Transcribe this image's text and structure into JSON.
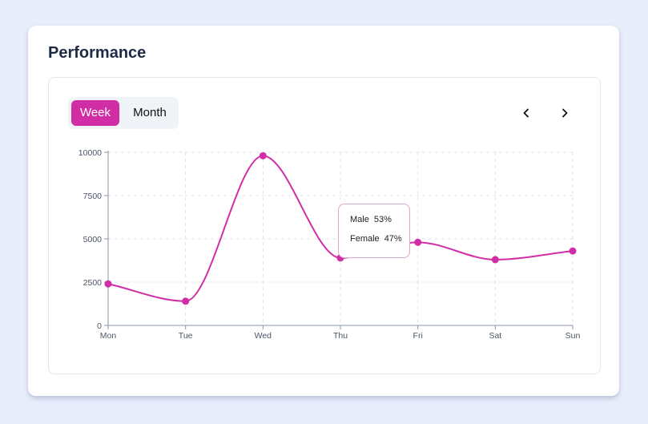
{
  "card": {
    "title": "Performance"
  },
  "toggle": {
    "week_label": "Week",
    "month_label": "Month",
    "active": "Week"
  },
  "nav": {
    "prev_icon": "chevron-left-icon",
    "next_icon": "chevron-right-icon"
  },
  "colors": {
    "accent": "#d12ea6",
    "grid": "#dfe3ea",
    "axis": "#8a96aa"
  },
  "tooltip": {
    "rows": [
      {
        "label": "Male",
        "value": "53%"
      },
      {
        "label": "Female",
        "value": "47%"
      }
    ]
  },
  "chart_data": {
    "type": "line",
    "categories": [
      "Mon",
      "Tue",
      "Wed",
      "Thu",
      "Fri",
      "Sat",
      "Sun"
    ],
    "values": [
      2400,
      1400,
      9800,
      3900,
      4800,
      3800,
      4300
    ],
    "yticks": [
      0,
      2500,
      5000,
      7500,
      10000
    ],
    "ylim": [
      0,
      10000
    ],
    "grid": true,
    "curve": "smooth"
  }
}
